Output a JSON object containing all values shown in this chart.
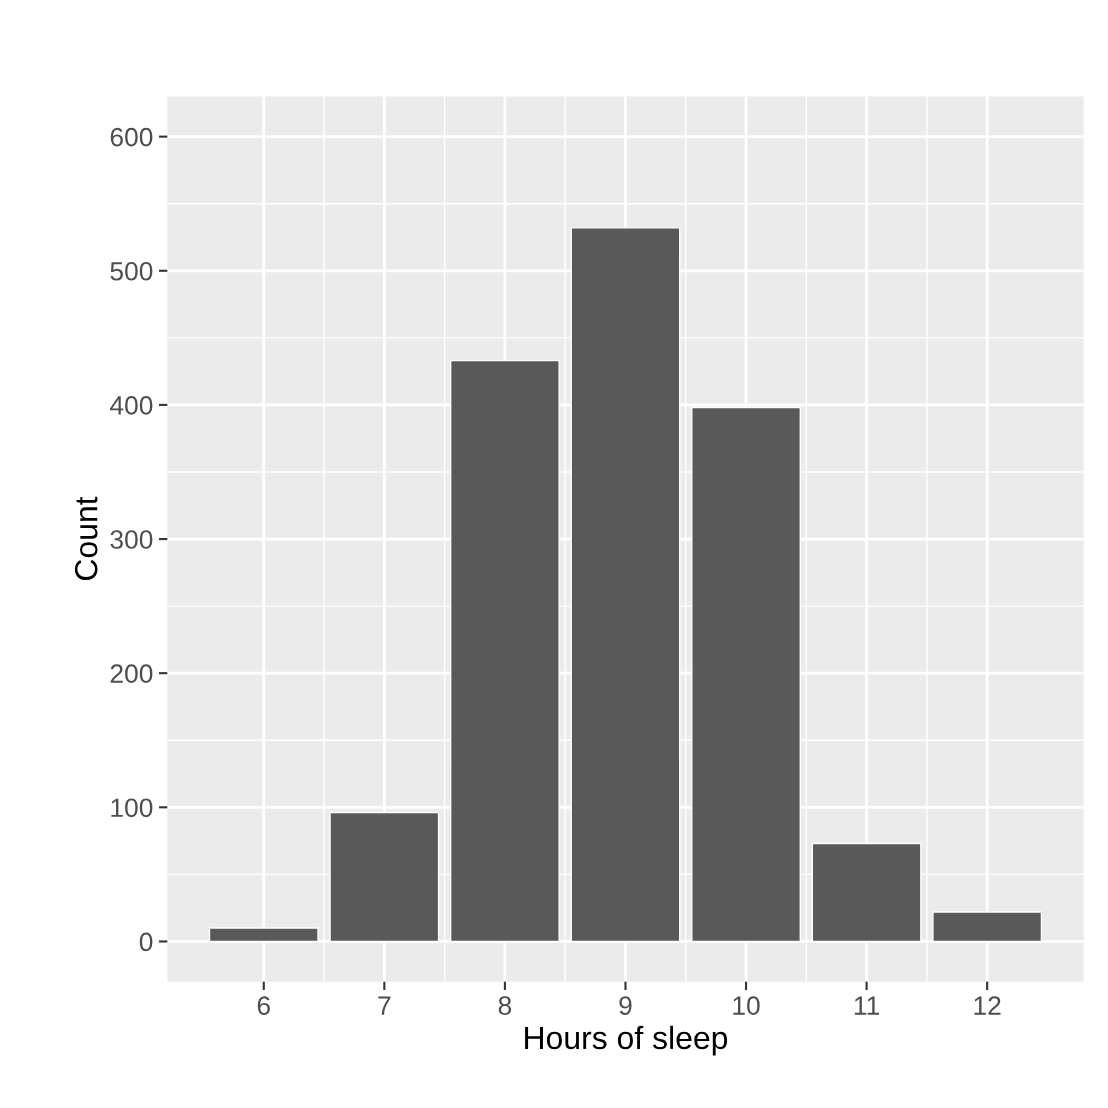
{
  "chart_data": {
    "type": "bar",
    "xlabel": "Hours of sleep",
    "ylabel": "Count",
    "x": [
      6,
      7,
      8,
      9,
      10,
      11,
      12
    ],
    "values": [
      10,
      96,
      433,
      532,
      398,
      73,
      22
    ],
    "color": "#595959",
    "xlim": [
      5.2,
      12.8
    ],
    "xticks": [
      6,
      7,
      8,
      9,
      10,
      11,
      12
    ],
    "ylim": [
      -30,
      630
    ],
    "yticks": [
      0,
      100,
      200,
      300,
      400,
      500,
      600
    ],
    "grid": true
  }
}
